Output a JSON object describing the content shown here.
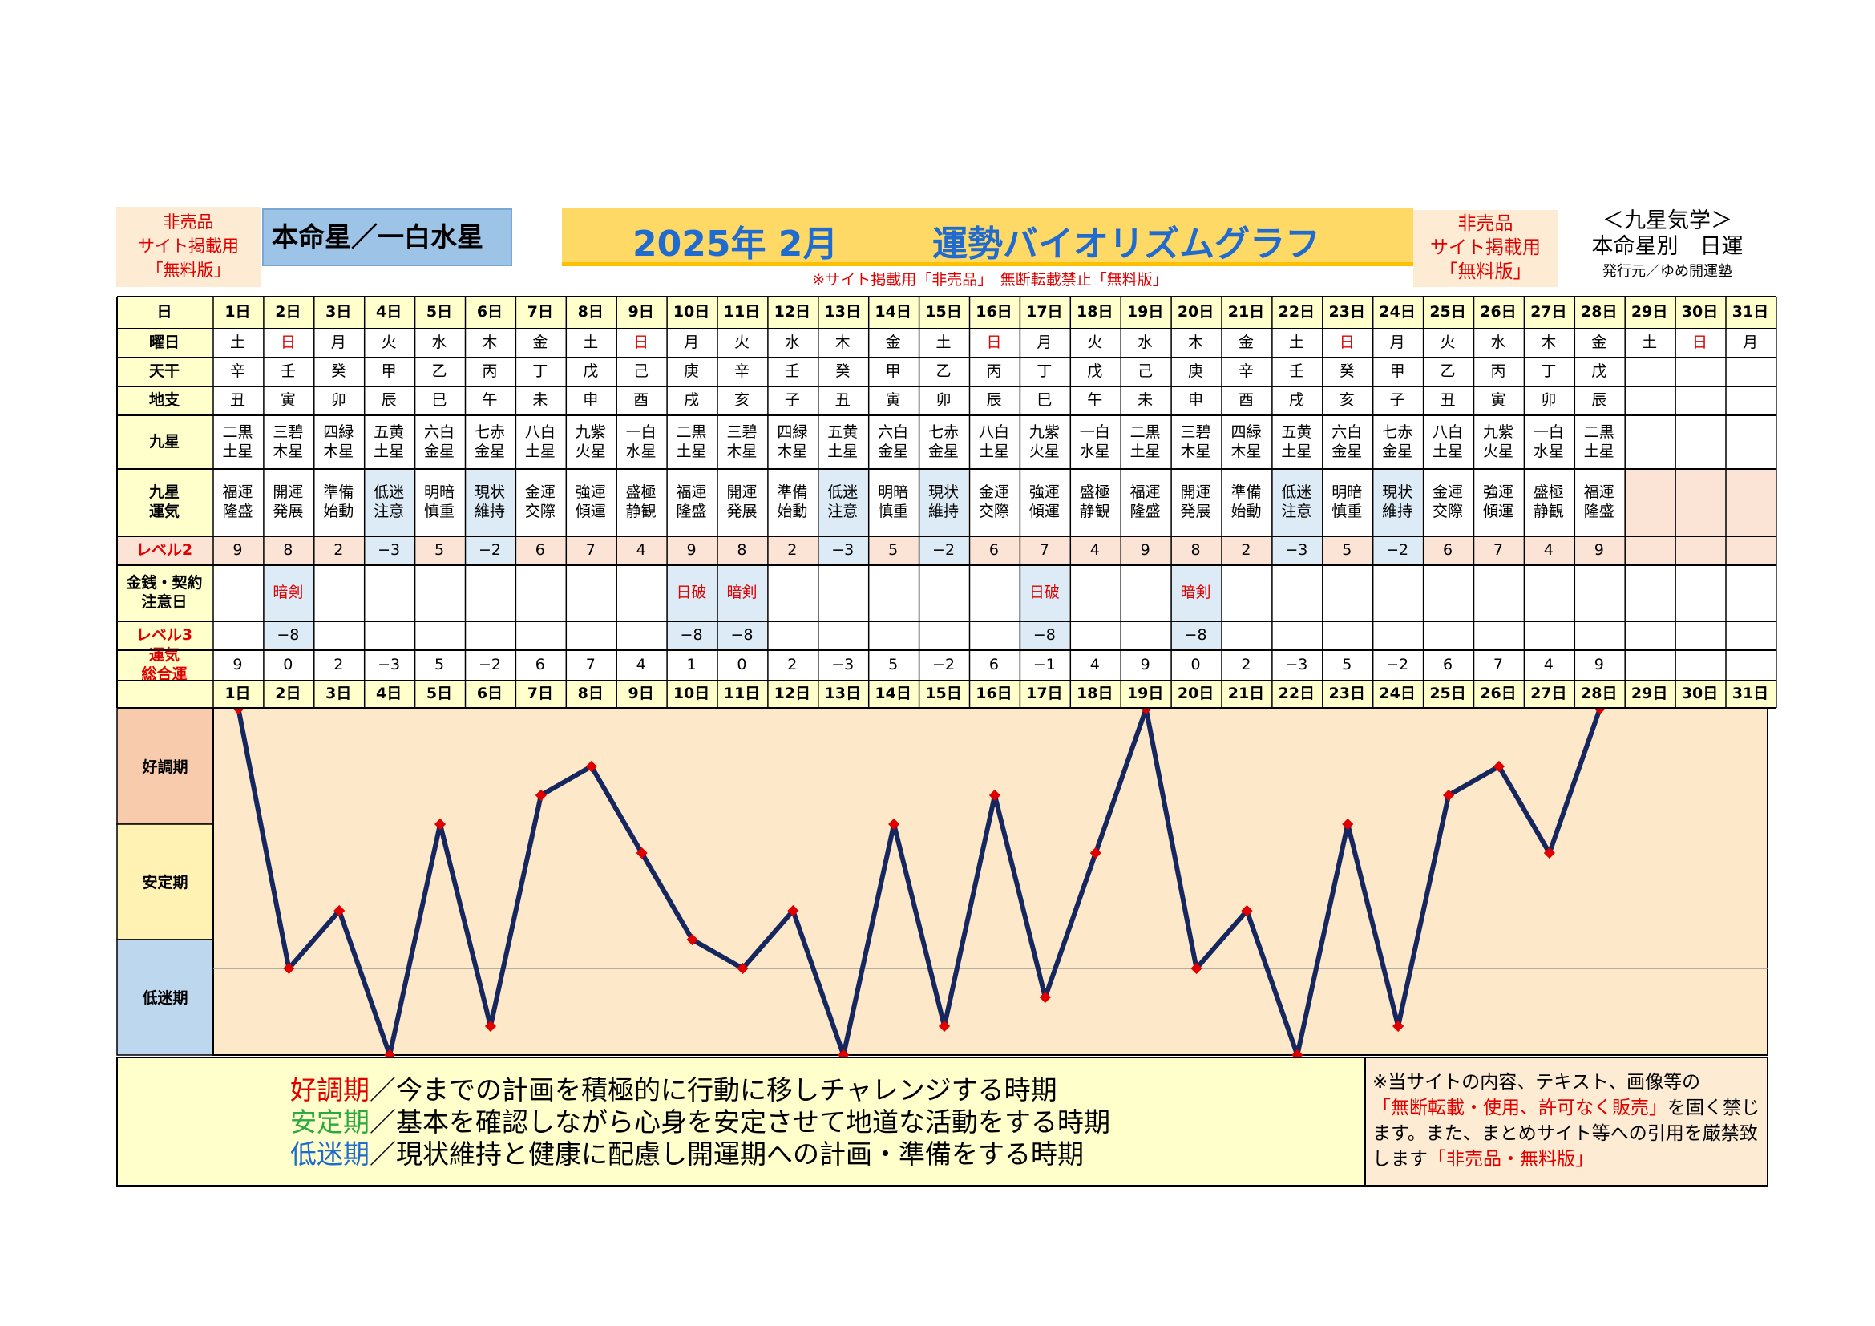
{
  "header": {
    "left_side": [
      "非売品",
      "サイト掲載用",
      "「無料版」"
    ],
    "honmeisei": "本命星／一白水星",
    "year_month": "2025年 2月",
    "main_title": "運勢バイオリズムグラフ",
    "notice": "※サイト掲載用「非売品」　無断転載禁止「無料版」",
    "right_side": [
      "非売品",
      "サイト掲載用",
      "「無料版」"
    ],
    "kyusei_title": "＜九星気学＞",
    "kyusei_sub": "本命星別　日運",
    "publisher": "発行元／ゆめ開運塾"
  },
  "row_labels": {
    "day": "日",
    "weekday": "曜日",
    "tenkan": "天干",
    "chishi": "地支",
    "kyusei": "九星",
    "kyusei_unki": [
      "九星",
      "運気"
    ],
    "level2": "レベル2",
    "money": [
      "金銭・契約",
      "注意日"
    ],
    "level3": "レベル3",
    "total": [
      "運気",
      "総合運"
    ]
  },
  "days": [
    "1日",
    "2日",
    "3日",
    "4日",
    "5日",
    "6日",
    "7日",
    "8日",
    "9日",
    "10日",
    "11日",
    "12日",
    "13日",
    "14日",
    "15日",
    "16日",
    "17日",
    "18日",
    "19日",
    "20日",
    "21日",
    "22日",
    "23日",
    "24日",
    "25日",
    "26日",
    "27日",
    "28日",
    "29日",
    "30日",
    "31日"
  ],
  "weekdays": [
    "土",
    "日",
    "月",
    "火",
    "水",
    "木",
    "金",
    "土",
    "日",
    "月",
    "火",
    "水",
    "木",
    "金",
    "土",
    "日",
    "月",
    "火",
    "水",
    "木",
    "金",
    "土",
    "日",
    "月",
    "火",
    "水",
    "木",
    "金",
    "土",
    "日",
    "月"
  ],
  "tenkan": [
    "辛",
    "壬",
    "癸",
    "甲",
    "乙",
    "丙",
    "丁",
    "戊",
    "己",
    "庚",
    "辛",
    "壬",
    "癸",
    "甲",
    "乙",
    "丙",
    "丁",
    "戊",
    "己",
    "庚",
    "辛",
    "壬",
    "癸",
    "甲",
    "乙",
    "丙",
    "丁",
    "戊",
    "",
    "",
    ""
  ],
  "chishi": [
    "丑",
    "寅",
    "卯",
    "辰",
    "巳",
    "午",
    "未",
    "申",
    "酉",
    "戌",
    "亥",
    "子",
    "丑",
    "寅",
    "卯",
    "辰",
    "巳",
    "午",
    "未",
    "申",
    "酉",
    "戌",
    "亥",
    "子",
    "丑",
    "寅",
    "卯",
    "辰",
    "",
    "",
    ""
  ],
  "kyusei": [
    [
      "二黒",
      "土星"
    ],
    [
      "三碧",
      "木星"
    ],
    [
      "四緑",
      "木星"
    ],
    [
      "五黄",
      "土星"
    ],
    [
      "六白",
      "金星"
    ],
    [
      "七赤",
      "金星"
    ],
    [
      "八白",
      "土星"
    ],
    [
      "九紫",
      "火星"
    ],
    [
      "一白",
      "水星"
    ],
    [
      "二黒",
      "土星"
    ],
    [
      "三碧",
      "木星"
    ],
    [
      "四緑",
      "木星"
    ],
    [
      "五黄",
      "土星"
    ],
    [
      "六白",
      "金星"
    ],
    [
      "七赤",
      "金星"
    ],
    [
      "八白",
      "土星"
    ],
    [
      "九紫",
      "火星"
    ],
    [
      "一白",
      "水星"
    ],
    [
      "二黒",
      "土星"
    ],
    [
      "三碧",
      "木星"
    ],
    [
      "四緑",
      "木星"
    ],
    [
      "五黄",
      "土星"
    ],
    [
      "六白",
      "金星"
    ],
    [
      "七赤",
      "金星"
    ],
    [
      "八白",
      "土星"
    ],
    [
      "九紫",
      "火星"
    ],
    [
      "一白",
      "水星"
    ],
    [
      "二黒",
      "土星"
    ],
    [
      "",
      ""
    ],
    [
      "",
      ""
    ],
    [
      "",
      ""
    ]
  ],
  "unki": [
    [
      "福運",
      "隆盛"
    ],
    [
      "開運",
      "発展"
    ],
    [
      "準備",
      "始動"
    ],
    [
      "低迷",
      "注意"
    ],
    [
      "明暗",
      "慎重"
    ],
    [
      "現状",
      "維持"
    ],
    [
      "金運",
      "交際"
    ],
    [
      "強運",
      "傾運"
    ],
    [
      "盛極",
      "静観"
    ],
    [
      "福運",
      "隆盛"
    ],
    [
      "開運",
      "発展"
    ],
    [
      "準備",
      "始動"
    ],
    [
      "低迷",
      "注意"
    ],
    [
      "明暗",
      "慎重"
    ],
    [
      "現状",
      "維持"
    ],
    [
      "金運",
      "交際"
    ],
    [
      "強運",
      "傾運"
    ],
    [
      "盛極",
      "静観"
    ],
    [
      "福運",
      "隆盛"
    ],
    [
      "開運",
      "発展"
    ],
    [
      "準備",
      "始動"
    ],
    [
      "低迷",
      "注意"
    ],
    [
      "明暗",
      "慎重"
    ],
    [
      "現状",
      "維持"
    ],
    [
      "金運",
      "交際"
    ],
    [
      "強運",
      "傾運"
    ],
    [
      "盛極",
      "静観"
    ],
    [
      "福運",
      "隆盛"
    ],
    [
      "",
      ""
    ],
    [
      "",
      ""
    ],
    [
      "",
      ""
    ]
  ],
  "level2": [
    "9",
    "8",
    "2",
    "−3",
    "5",
    "−2",
    "6",
    "7",
    "4",
    "9",
    "8",
    "2",
    "−3",
    "5",
    "−2",
    "6",
    "7",
    "4",
    "9",
    "8",
    "2",
    "−3",
    "5",
    "−2",
    "6",
    "7",
    "4",
    "9",
    "",
    "",
    ""
  ],
  "money": [
    "",
    "暗剣",
    "",
    "",
    "",
    "",
    "",
    "",
    "",
    "日破",
    "暗剣",
    "",
    "",
    "",
    "",
    "",
    "日破",
    "",
    "",
    "暗剣",
    "",
    "",
    "",
    "",
    "",
    "",
    "",
    "",
    "",
    "",
    ""
  ],
  "level3": [
    "",
    "−8",
    "",
    "",
    "",
    "",
    "",
    "",
    "",
    "−8",
    "−8",
    "",
    "",
    "",
    "",
    "",
    "−8",
    "",
    "",
    "−8",
    "",
    "",
    "",
    "",
    "",
    "",
    "",
    "",
    "",
    "",
    ""
  ],
  "total": [
    "9",
    "0",
    "2",
    "−3",
    "5",
    "−2",
    "6",
    "7",
    "4",
    "1",
    "0",
    "2",
    "−3",
    "5",
    "−2",
    "6",
    "−1",
    "4",
    "9",
    "0",
    "2",
    "−3",
    "5",
    "−2",
    "6",
    "7",
    "4",
    "9",
    "",
    "",
    ""
  ],
  "chart_data": {
    "type": "line",
    "title": "運勢バイオリズムグラフ",
    "x": [
      "1日",
      "2日",
      "3日",
      "4日",
      "5日",
      "6日",
      "7日",
      "8日",
      "9日",
      "10日",
      "11日",
      "12日",
      "13日",
      "14日",
      "15日",
      "16日",
      "17日",
      "18日",
      "19日",
      "20日",
      "21日",
      "22日",
      "23日",
      "24日",
      "25日",
      "26日",
      "27日",
      "28日"
    ],
    "series": [
      {
        "name": "運気総合運",
        "values": [
          9,
          0,
          2,
          -3,
          5,
          -2,
          6,
          7,
          4,
          1,
          0,
          2,
          -3,
          5,
          -2,
          6,
          -1,
          4,
          9,
          0,
          2,
          -3,
          5,
          -2,
          6,
          7,
          4,
          9
        ]
      }
    ],
    "ylim": [
      -3,
      9
    ],
    "zones": [
      "好調期",
      "安定期",
      "低迷期"
    ],
    "line_color": "#15275e",
    "marker_color": "#e00000"
  },
  "legend": [
    {
      "head": "好調期",
      "text": "／今までの計画を積極的に行動に移しチャレンジする時期",
      "color": "#e00000"
    },
    {
      "head": "安定期",
      "text": "／基本を確認しながら心身を安定させて地道な活動をする時期",
      "color": "#2aa842"
    },
    {
      "head": "低迷期",
      "text": "／現状維持と健康に配慮し開運期への計画・準備をする時期",
      "color": "#1f6bd0"
    }
  ],
  "copyright": {
    "line1": "※当サイトの内容、テキスト、画像等の",
    "red1": "「無断転載・使用、許可なく販売」",
    "line2": "を固く禁じます。また、まとめサイト等への引用を厳禁致します",
    "red2": "「非売品・無料版」"
  },
  "colors": {
    "yellow": "#ffffcc",
    "pink": "#fbe4d5",
    "blue": "#ddebf7",
    "good": "#f8cbad",
    "stable": "#fff2b3",
    "low": "#bdd7ee",
    "graph_bg": "#fde9c9"
  }
}
